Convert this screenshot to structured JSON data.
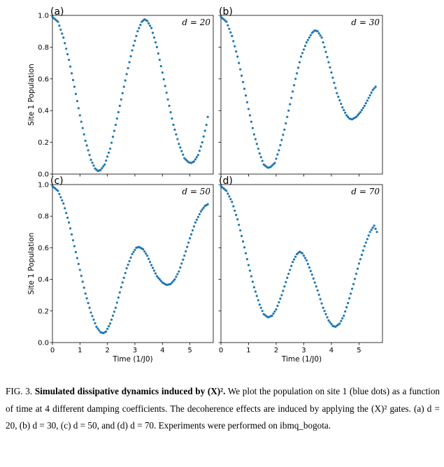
{
  "chart_data": [
    {
      "type": "scatter",
      "panel": "(a)",
      "annotation": "d = 20",
      "ylabel": "Site 1 Population",
      "xlabel": "",
      "xlim": [
        0,
        5.85
      ],
      "ylim": [
        0,
        1.0
      ],
      "xticks": [],
      "yticks": [
        0.0,
        0.2,
        0.4,
        0.6,
        0.8,
        1.0
      ],
      "color": "#1f77b4",
      "points": [
        [
          0,
          0.99
        ],
        [
          0.2,
          0.96
        ],
        [
          0.4,
          0.86
        ],
        [
          0.6,
          0.72
        ],
        [
          0.8,
          0.55
        ],
        [
          1.0,
          0.37
        ],
        [
          1.2,
          0.21
        ],
        [
          1.4,
          0.09
        ],
        [
          1.55,
          0.035
        ],
        [
          1.65,
          0.02
        ],
        [
          1.75,
          0.025
        ],
        [
          1.9,
          0.06
        ],
        [
          2.1,
          0.16
        ],
        [
          2.3,
          0.31
        ],
        [
          2.5,
          0.47
        ],
        [
          2.7,
          0.63
        ],
        [
          2.9,
          0.78
        ],
        [
          3.1,
          0.9
        ],
        [
          3.25,
          0.96
        ],
        [
          3.35,
          0.975
        ],
        [
          3.45,
          0.965
        ],
        [
          3.6,
          0.92
        ],
        [
          3.8,
          0.8
        ],
        [
          4.0,
          0.64
        ],
        [
          4.2,
          0.47
        ],
        [
          4.4,
          0.31
        ],
        [
          4.6,
          0.19
        ],
        [
          4.8,
          0.1
        ],
        [
          4.95,
          0.075
        ],
        [
          5.05,
          0.07
        ],
        [
          5.15,
          0.08
        ],
        [
          5.3,
          0.12
        ],
        [
          5.45,
          0.2
        ],
        [
          5.6,
          0.31
        ],
        [
          5.65,
          0.36
        ]
      ]
    },
    {
      "type": "scatter",
      "panel": "(b)",
      "annotation": "d = 30",
      "ylabel": "",
      "xlabel": "",
      "xlim": [
        0,
        5.85
      ],
      "ylim": [
        0,
        1.0
      ],
      "xticks": [],
      "yticks": [],
      "color": "#1f77b4",
      "points": [
        [
          0,
          0.99
        ],
        [
          0.2,
          0.96
        ],
        [
          0.4,
          0.87
        ],
        [
          0.6,
          0.74
        ],
        [
          0.8,
          0.58
        ],
        [
          1.0,
          0.41
        ],
        [
          1.2,
          0.25
        ],
        [
          1.4,
          0.13
        ],
        [
          1.55,
          0.06
        ],
        [
          1.7,
          0.04
        ],
        [
          1.8,
          0.045
        ],
        [
          1.95,
          0.07
        ],
        [
          2.1,
          0.15
        ],
        [
          2.3,
          0.28
        ],
        [
          2.5,
          0.44
        ],
        [
          2.7,
          0.6
        ],
        [
          2.9,
          0.74
        ],
        [
          3.1,
          0.83
        ],
        [
          3.3,
          0.89
        ],
        [
          3.4,
          0.905
        ],
        [
          3.5,
          0.9
        ],
        [
          3.65,
          0.86
        ],
        [
          3.8,
          0.77
        ],
        [
          4.0,
          0.64
        ],
        [
          4.2,
          0.51
        ],
        [
          4.4,
          0.42
        ],
        [
          4.55,
          0.37
        ],
        [
          4.65,
          0.35
        ],
        [
          4.75,
          0.345
        ],
        [
          4.9,
          0.36
        ],
        [
          5.05,
          0.39
        ],
        [
          5.2,
          0.43
        ],
        [
          5.35,
          0.48
        ],
        [
          5.5,
          0.53
        ],
        [
          5.6,
          0.55
        ]
      ]
    },
    {
      "type": "scatter",
      "panel": "(c)",
      "annotation": "d = 50",
      "ylabel": "Site 1 Population",
      "xlabel": "Time (1/J0)",
      "xlim": [
        0,
        5.85
      ],
      "ylim": [
        0,
        1.0
      ],
      "xticks": [
        0,
        1,
        2,
        3,
        4,
        5
      ],
      "yticks": [
        0.0,
        0.2,
        0.4,
        0.6,
        0.8,
        1.0
      ],
      "color": "#1f77b4",
      "points": [
        [
          0,
          0.99
        ],
        [
          0.2,
          0.96
        ],
        [
          0.4,
          0.88
        ],
        [
          0.6,
          0.76
        ],
        [
          0.8,
          0.61
        ],
        [
          1.0,
          0.46
        ],
        [
          1.2,
          0.31
        ],
        [
          1.4,
          0.19
        ],
        [
          1.6,
          0.1
        ],
        [
          1.75,
          0.065
        ],
        [
          1.85,
          0.06
        ],
        [
          1.95,
          0.07
        ],
        [
          2.1,
          0.12
        ],
        [
          2.3,
          0.22
        ],
        [
          2.5,
          0.35
        ],
        [
          2.7,
          0.47
        ],
        [
          2.9,
          0.56
        ],
        [
          3.05,
          0.6
        ],
        [
          3.15,
          0.605
        ],
        [
          3.3,
          0.59
        ],
        [
          3.45,
          0.55
        ],
        [
          3.6,
          0.49
        ],
        [
          3.8,
          0.42
        ],
        [
          4.0,
          0.38
        ],
        [
          4.15,
          0.365
        ],
        [
          4.3,
          0.37
        ],
        [
          4.45,
          0.4
        ],
        [
          4.6,
          0.45
        ],
        [
          4.8,
          0.55
        ],
        [
          5.0,
          0.66
        ],
        [
          5.2,
          0.76
        ],
        [
          5.4,
          0.83
        ],
        [
          5.55,
          0.865
        ],
        [
          5.65,
          0.875
        ]
      ]
    },
    {
      "type": "scatter",
      "panel": "(d)",
      "annotation": "d = 70",
      "ylabel": "",
      "xlabel": "Time (1/J0)",
      "xlim": [
        0,
        5.85
      ],
      "ylim": [
        0,
        1.0
      ],
      "xticks": [
        0,
        1,
        2,
        3,
        4,
        5
      ],
      "yticks": [],
      "color": "#1f77b4",
      "points": [
        [
          0,
          0.99
        ],
        [
          0.2,
          0.96
        ],
        [
          0.4,
          0.89
        ],
        [
          0.6,
          0.78
        ],
        [
          0.8,
          0.64
        ],
        [
          1.0,
          0.49
        ],
        [
          1.2,
          0.35
        ],
        [
          1.4,
          0.24
        ],
        [
          1.55,
          0.18
        ],
        [
          1.7,
          0.16
        ],
        [
          1.85,
          0.17
        ],
        [
          2.0,
          0.21
        ],
        [
          2.2,
          0.3
        ],
        [
          2.4,
          0.41
        ],
        [
          2.6,
          0.51
        ],
        [
          2.75,
          0.56
        ],
        [
          2.85,
          0.575
        ],
        [
          2.95,
          0.565
        ],
        [
          3.1,
          0.52
        ],
        [
          3.3,
          0.43
        ],
        [
          3.5,
          0.33
        ],
        [
          3.7,
          0.22
        ],
        [
          3.9,
          0.14
        ],
        [
          4.05,
          0.105
        ],
        [
          4.15,
          0.1
        ],
        [
          4.3,
          0.12
        ],
        [
          4.45,
          0.17
        ],
        [
          4.6,
          0.25
        ],
        [
          4.8,
          0.37
        ],
        [
          5.0,
          0.5
        ],
        [
          5.2,
          0.61
        ],
        [
          5.4,
          0.7
        ],
        [
          5.55,
          0.74
        ],
        [
          5.65,
          0.7
        ]
      ]
    }
  ],
  "caption": {
    "fig_label": "FIG. 3.",
    "bold_title": "Simulated dissipative dynamics induced by",
    "bold_math": "(X)²",
    "bold_end": ".",
    "body_1": " We plot the population on site 1 (blue dots) as a function of time at 4 different damping coefficients. The decoherence effects are induced by applying the ",
    "body_math": "(X)²",
    "body_2": " gates. (a) d = 20, (b) d = 30, (c) d = 50, and (d) d = 70. Experiments were performed on ibmq_bogota."
  }
}
